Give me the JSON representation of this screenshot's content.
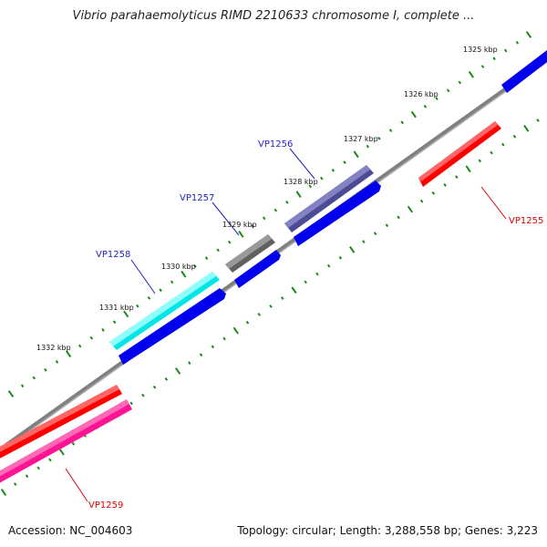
{
  "title": "Vibrio parahaemolyticus RIMD 2210633 chromosome I, complete ...",
  "footer": {
    "accession": "Accession: NC_004603",
    "summary": "Topology: circular; Length: 3,288,558 bp; Genes: 3,223"
  },
  "colors": {
    "backbone": "#808080",
    "tick": "#1a8a1a",
    "cds": "#0000ee",
    "forward_label": "#1f1fbf",
    "reverse_label": "#e00000"
  },
  "kbp_labels": [
    "1325 kbp",
    "1326 kbp",
    "1327 kbp",
    "1328 kbp",
    "1329 kbp",
    "1330 kbp",
    "1331 kbp",
    "1332 kbp"
  ],
  "genes": [
    {
      "name": "VP1255",
      "strand": "reverse",
      "color": "#ff0000"
    },
    {
      "name": "VP1256",
      "strand": "forward",
      "color": "#4b4b96"
    },
    {
      "name": "VP1257",
      "strand": "forward",
      "color": "#606060"
    },
    {
      "name": "VP1258",
      "strand": "forward",
      "color": "#00e6e6"
    },
    {
      "name": "VP1259",
      "strand": "reverse",
      "color": "#ff1493"
    }
  ]
}
